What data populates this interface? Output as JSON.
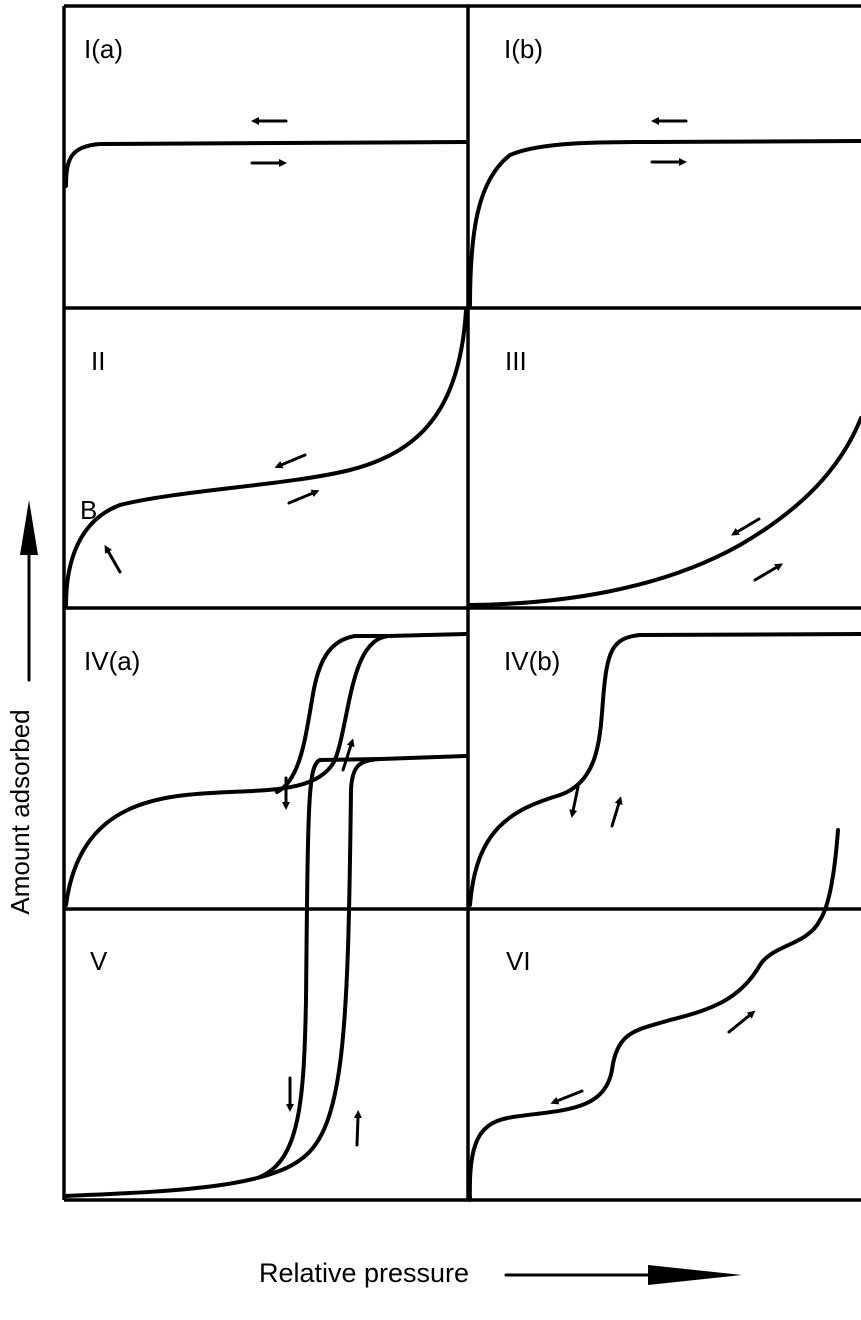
{
  "figure": {
    "y_axis_label": "Amount adsorbed",
    "x_axis_label": "Relative pressure",
    "panels": [
      {
        "id": "I(a)",
        "label": "I(a)"
      },
      {
        "id": "I(b)",
        "label": "I(b)"
      },
      {
        "id": "II",
        "label": "II",
        "point_label": "B"
      },
      {
        "id": "III",
        "label": "III"
      },
      {
        "id": "IV(a)",
        "label": "IV(a)"
      },
      {
        "id": "IV(b)",
        "label": "IV(b)"
      },
      {
        "id": "V",
        "label": "V"
      },
      {
        "id": "VI",
        "label": "VI"
      }
    ],
    "colors": {
      "ink": "#000000",
      "background": "#ffffff"
    }
  }
}
